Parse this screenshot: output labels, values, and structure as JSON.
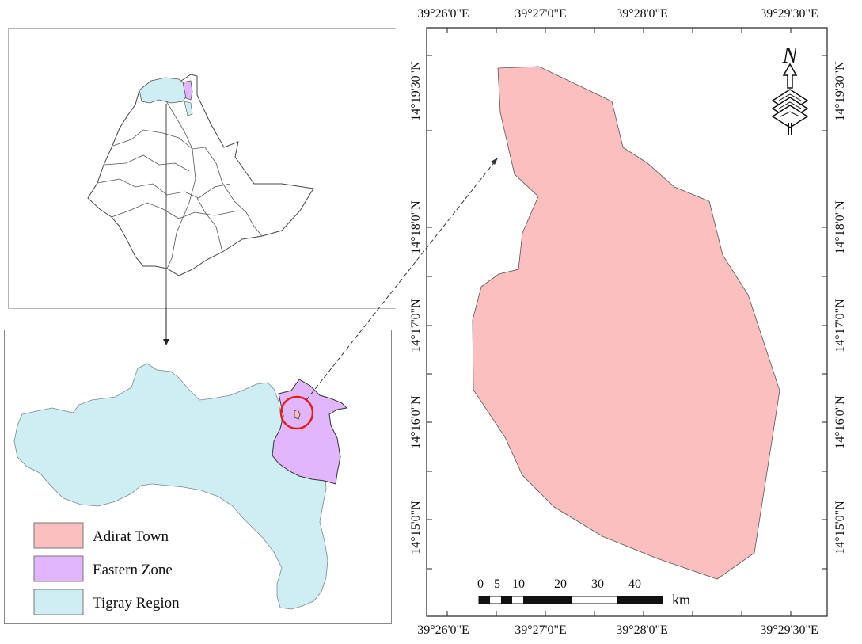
{
  "colors": {
    "adirat_town": "#fbbfbf",
    "eastern_zone": "#e2b6fb",
    "tigray_region": "#cfeef4",
    "highlight_circle": "#e02020"
  },
  "legend": {
    "items": [
      {
        "label": "Adirat Town"
      },
      {
        "label": "Eastern Zone"
      },
      {
        "label": "Tigray Region"
      }
    ]
  },
  "map": {
    "longitude_labels": [
      "39°26'0\"E",
      "39°27'0\"E",
      "39°28'0\"E",
      "39°29'30\"E"
    ],
    "latitude_labels": [
      "14°19'30\"N",
      "14°18'0\"N",
      "14°17'0\"N",
      "14°16'0\"N",
      "14°15'0\"N"
    ],
    "north_arrow": "N",
    "north_arrow_icon": "north-arrow-icon",
    "scale_bar": {
      "ticks": [
        "0",
        "5",
        "10",
        "20",
        "30",
        "40"
      ],
      "unit": "km"
    }
  }
}
